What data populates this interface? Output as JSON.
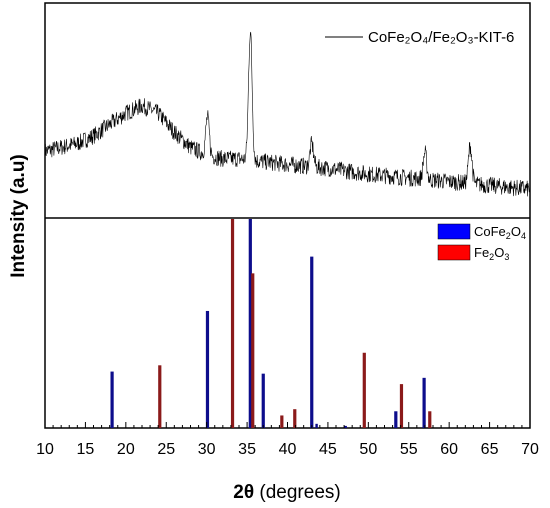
{
  "chart_data": {
    "type": "line",
    "xlabel_main": "2θ",
    "xlabel_unit": "(degrees)",
    "ylabel": "Intensity (a.u)",
    "xlim": [
      10,
      70
    ],
    "x_ticks": [
      10,
      15,
      20,
      25,
      30,
      35,
      40,
      45,
      50,
      55,
      60,
      65,
      70
    ],
    "top_panel": {
      "series_name": "CoFe₂O₄/Fe₂O₃-KIT-6",
      "color": "#000000",
      "background_points": [
        [
          10,
          0.32
        ],
        [
          12,
          0.34
        ],
        [
          14,
          0.36
        ],
        [
          16,
          0.4
        ],
        [
          18,
          0.46
        ],
        [
          20,
          0.52
        ],
        [
          22,
          0.56
        ],
        [
          24,
          0.52
        ],
        [
          26,
          0.42
        ],
        [
          28,
          0.34
        ],
        [
          30,
          0.3
        ],
        [
          32,
          0.28
        ],
        [
          34,
          0.28
        ],
        [
          36,
          0.27
        ],
        [
          40,
          0.25
        ],
        [
          45,
          0.23
        ],
        [
          50,
          0.2
        ],
        [
          55,
          0.18
        ],
        [
          60,
          0.16
        ],
        [
          65,
          0.14
        ],
        [
          70,
          0.12
        ]
      ],
      "peaks": [
        {
          "x": 30.1,
          "height": 0.2
        },
        {
          "x": 35.4,
          "height": 0.68
        },
        {
          "x": 43.0,
          "height": 0.12
        },
        {
          "x": 57.0,
          "height": 0.14
        },
        {
          "x": 62.6,
          "height": 0.2
        }
      ]
    },
    "bottom_panel": {
      "series": [
        {
          "name_main": "CoFe",
          "name_sub1": "2",
          "name_mid": "O",
          "name_sub2": "4",
          "color": "#0d0d8c",
          "legend_color": "#0000ff",
          "x": [
            18.3,
            30.1,
            35.4,
            37.0,
            43.0,
            53.4,
            56.9
          ],
          "values": [
            0.27,
            0.56,
            1.0,
            0.26,
            0.82,
            0.08,
            0.24
          ]
        },
        {
          "name_main": "Fe",
          "name_sub1": "2",
          "name_mid": "O",
          "name_sub2": "3",
          "color": "#8b1a1a",
          "legend_color": "#ff0000",
          "x": [
            24.2,
            33.2,
            35.7,
            39.3,
            40.9,
            49.5,
            54.1,
            57.6
          ],
          "values": [
            0.3,
            1.0,
            0.74,
            0.06,
            0.09,
            0.36,
            0.21,
            0.08
          ]
        }
      ],
      "minor_peaks": [
        {
          "x": 43.6,
          "value": 0.02
        },
        {
          "x": 47.2,
          "value": 0.01
        }
      ]
    }
  }
}
